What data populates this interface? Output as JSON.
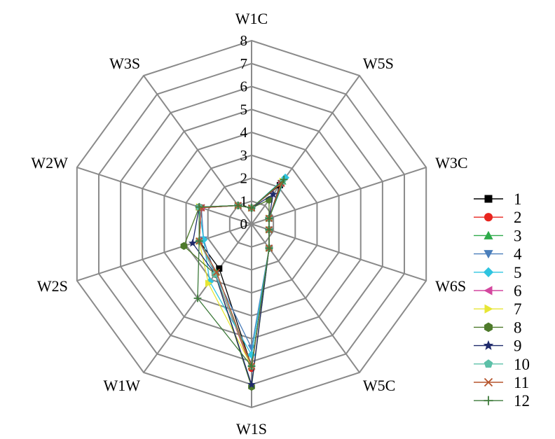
{
  "chart_data": {
    "type": "radar",
    "categories": [
      "W1C",
      "W5S",
      "W3C",
      "W6S",
      "W5C",
      "W1S",
      "W1W",
      "W2S",
      "W2W",
      "W3S"
    ],
    "rlim": [
      0,
      8
    ],
    "ticks": [
      0,
      1,
      2,
      3,
      4,
      5,
      6,
      7,
      8
    ],
    "grid": true,
    "legend_position": "right",
    "series": [
      {
        "name": "1",
        "color": "#000000",
        "marker": "square",
        "values": [
          0.7,
          2.1,
          0.8,
          0.8,
          1.3,
          6.2,
          2.4,
          2.4,
          2.3,
          1.0
        ]
      },
      {
        "name": "2",
        "color": "#e8251f",
        "marker": "circle",
        "values": [
          0.7,
          2.2,
          0.8,
          0.8,
          1.3,
          6.3,
          2.7,
          2.4,
          2.3,
          1.0
        ]
      },
      {
        "name": "3",
        "color": "#2eaa4a",
        "marker": "triangle-up",
        "values": [
          0.7,
          2.3,
          0.8,
          0.8,
          1.3,
          6.2,
          2.6,
          2.4,
          2.4,
          1.0
        ]
      },
      {
        "name": "4",
        "color": "#4a7ebb",
        "marker": "triangle-down",
        "values": [
          0.7,
          2.2,
          0.8,
          0.8,
          1.3,
          5.4,
          2.7,
          2.2,
          2.3,
          1.0
        ]
      },
      {
        "name": "5",
        "color": "#2ec4e0",
        "marker": "diamond",
        "values": [
          0.7,
          2.5,
          0.8,
          0.8,
          1.3,
          5.7,
          3.1,
          2.2,
          2.4,
          1.0
        ]
      },
      {
        "name": "6",
        "color": "#d4479f",
        "marker": "triangle-left",
        "values": [
          0.7,
          2.2,
          0.8,
          0.8,
          1.3,
          6.2,
          2.7,
          2.4,
          2.3,
          1.0
        ]
      },
      {
        "name": "7",
        "color": "#e7e634",
        "marker": "triangle-right",
        "values": [
          0.7,
          2.3,
          0.8,
          0.8,
          1.3,
          6.2,
          3.2,
          2.4,
          2.4,
          1.0
        ]
      },
      {
        "name": "8",
        "color": "#4e7a2b",
        "marker": "hexagon",
        "values": [
          0.7,
          1.3,
          0.8,
          0.8,
          1.3,
          7.1,
          2.7,
          3.1,
          2.4,
          1.0
        ]
      },
      {
        "name": "9",
        "color": "#1f2a6b",
        "marker": "star",
        "values": [
          0.7,
          1.6,
          0.8,
          0.8,
          1.3,
          7.0,
          2.7,
          2.7,
          2.4,
          1.0
        ]
      },
      {
        "name": "10",
        "color": "#5cc0a8",
        "marker": "pentagon",
        "values": [
          0.7,
          2.3,
          0.8,
          0.8,
          1.3,
          6.2,
          2.7,
          2.4,
          2.4,
          1.0
        ]
      },
      {
        "name": "11",
        "color": "#b5542c",
        "marker": "x",
        "values": [
          0.7,
          2.2,
          0.8,
          0.8,
          1.3,
          6.2,
          2.6,
          2.4,
          2.3,
          1.0
        ]
      },
      {
        "name": "12",
        "color": "#3d7a3a",
        "marker": "plus",
        "values": [
          0.7,
          2.4,
          0.8,
          0.8,
          1.3,
          6.2,
          4.0,
          2.4,
          2.4,
          1.0
        ]
      }
    ]
  }
}
